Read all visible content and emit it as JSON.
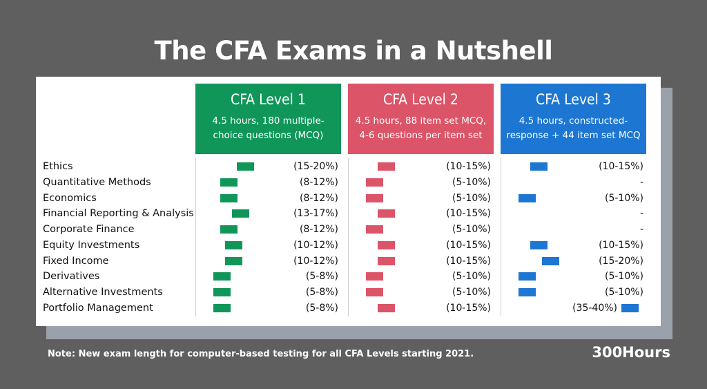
{
  "title": "The CFA Exams in a Nutshell",
  "note": "Note: New exam length for computer-based testing for all CFA Levels starting 2021.",
  "brand": "300Hours",
  "colors": {
    "level1": "#11965a",
    "level2": "#db5468",
    "level3": "#1d76d2"
  },
  "chart_data": {
    "type": "table",
    "title": "The CFA Exams in a Nutshell",
    "levels": [
      {
        "name": "CFA Level 1",
        "description": "4.5 hours, 180 multiple-choice questions (MCQ)",
        "desc_lines": [
          "4.5 hours, 180 multiple-",
          "choice questions (MCQ)"
        ]
      },
      {
        "name": "CFA Level 2",
        "description": "4.5 hours, 88 item set MCQ, 4-6 questions per item set",
        "desc_lines": [
          "4.5 hours, 88 item set MCQ,",
          "4-6 questions per item set"
        ]
      },
      {
        "name": "CFA Level 3",
        "description": "4.5 hours, constructed-response + 44 item set MCQ",
        "desc_lines": [
          "4.5 hours, constructed-",
          "response + 44 item set MCQ"
        ]
      }
    ],
    "topics": [
      "Ethics",
      "Quantitative Methods",
      "Economics",
      "Financial Reporting & Analysis",
      "Corporate Finance",
      "Equity Investments",
      "Fixed Income",
      "Derivatives",
      "Alternative Investments",
      "Portfolio Management"
    ],
    "series": [
      {
        "level": "CFA Level 1",
        "labels": [
          "(15-20%)",
          "(8-12%)",
          "(8-12%)",
          "(13-17%)",
          "(8-12%)",
          "(10-12%)",
          "(10-12%)",
          "(5-8%)",
          "(5-8%)",
          "(5-8%)"
        ],
        "ranges": [
          [
            15,
            20
          ],
          [
            8,
            12
          ],
          [
            8,
            12
          ],
          [
            13,
            17
          ],
          [
            8,
            12
          ],
          [
            10,
            12
          ],
          [
            10,
            12
          ],
          [
            5,
            8
          ],
          [
            5,
            8
          ],
          [
            5,
            8
          ]
        ]
      },
      {
        "level": "CFA Level 2",
        "labels": [
          "(10-15%)",
          "(5-10%)",
          "(5-10%)",
          "(10-15%)",
          "(5-10%)",
          "(10-15%)",
          "(10-15%)",
          "(5-10%)",
          "(5-10%)",
          "(10-15%)"
        ],
        "ranges": [
          [
            10,
            15
          ],
          [
            5,
            10
          ],
          [
            5,
            10
          ],
          [
            10,
            15
          ],
          [
            5,
            10
          ],
          [
            10,
            15
          ],
          [
            10,
            15
          ],
          [
            5,
            10
          ],
          [
            5,
            10
          ],
          [
            10,
            15
          ]
        ]
      },
      {
        "level": "CFA Level 3",
        "labels": [
          "(10-15%)",
          "-",
          "(5-10%)",
          "-",
          "-",
          "(10-15%)",
          "(15-20%)",
          "(5-10%)",
          "(5-10%)",
          "(35-40%)"
        ],
        "ranges": [
          [
            10,
            15
          ],
          null,
          [
            5,
            10
          ],
          null,
          null,
          [
            10,
            15
          ],
          [
            15,
            20
          ],
          [
            5,
            10
          ],
          [
            5,
            10
          ],
          [
            35,
            40
          ]
        ]
      }
    ]
  }
}
